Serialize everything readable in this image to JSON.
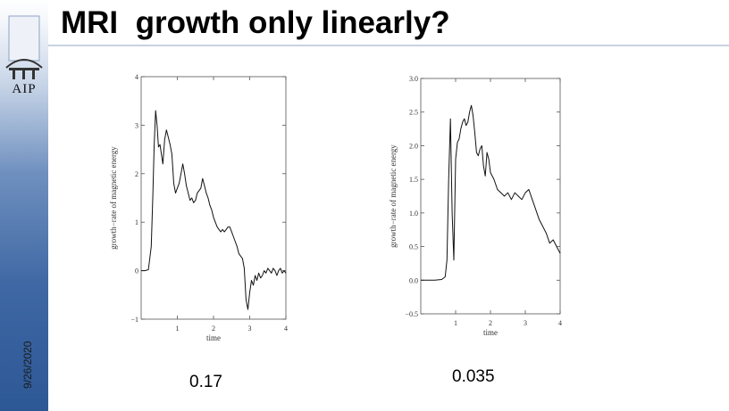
{
  "slide": {
    "title": "MRI  growth only linearly?",
    "date": "9/26/2020",
    "logo_text": "AIP"
  },
  "annotations": [
    "0.17",
    "0.035"
  ],
  "chart_data": [
    {
      "type": "line",
      "xlabel": "time",
      "ylabel": "growth−rate of magnetic energy",
      "xlim": [
        0,
        4.0
      ],
      "ylim": [
        -1,
        4
      ],
      "xticks": [
        1,
        2,
        3,
        4
      ],
      "yticks": [
        -1,
        0,
        1,
        2,
        3,
        4
      ],
      "xtick_labels": [
        "1",
        "2",
        "3",
        "4"
      ],
      "ytick_labels": [
        "−1",
        "0",
        "1",
        "2",
        "3",
        "4"
      ],
      "grid": false,
      "series": [
        {
          "x": [
            0.0,
            0.1,
            0.2,
            0.28,
            0.32,
            0.36,
            0.4,
            0.44,
            0.48,
            0.52,
            0.56,
            0.6,
            0.65,
            0.7,
            0.75,
            0.8,
            0.85,
            0.9,
            0.95,
            1.0,
            1.05,
            1.1,
            1.15,
            1.2,
            1.25,
            1.3,
            1.35,
            1.4,
            1.45,
            1.5,
            1.55,
            1.6,
            1.65,
            1.7,
            1.75,
            1.8,
            1.85,
            1.9,
            1.95,
            2.0,
            2.05,
            2.1,
            2.15,
            2.2,
            2.25,
            2.3,
            2.35,
            2.4,
            2.45,
            2.5,
            2.55,
            2.6,
            2.65,
            2.7,
            2.75,
            2.8,
            2.85,
            2.9,
            2.95,
            3.0,
            3.05,
            3.1,
            3.15,
            3.2,
            3.25,
            3.3,
            3.35,
            3.4,
            3.45,
            3.5,
            3.55,
            3.6,
            3.65,
            3.7,
            3.75,
            3.8,
            3.85,
            3.9,
            3.95,
            4.0
          ],
          "y": [
            0.0,
            0.0,
            0.02,
            0.5,
            1.5,
            2.6,
            3.3,
            3.0,
            2.55,
            2.6,
            2.4,
            2.2,
            2.7,
            2.9,
            2.75,
            2.6,
            2.4,
            1.8,
            1.6,
            1.7,
            1.8,
            2.0,
            2.2,
            2.0,
            1.75,
            1.6,
            1.45,
            1.5,
            1.4,
            1.45,
            1.6,
            1.65,
            1.7,
            1.9,
            1.75,
            1.6,
            1.5,
            1.35,
            1.25,
            1.1,
            1.0,
            0.9,
            0.85,
            0.8,
            0.85,
            0.8,
            0.85,
            0.9,
            0.9,
            0.8,
            0.7,
            0.6,
            0.5,
            0.35,
            0.3,
            0.25,
            0.05,
            -0.6,
            -0.8,
            -0.45,
            -0.2,
            -0.3,
            -0.1,
            -0.2,
            -0.05,
            -0.15,
            -0.1,
            0.0,
            -0.05,
            0.05,
            0.0,
            -0.05,
            0.05,
            0.0,
            -0.1,
            0.0,
            0.05,
            -0.05,
            0.0,
            -0.05
          ]
        }
      ]
    },
    {
      "type": "line",
      "xlabel": "time",
      "ylabel": "growth−rate of magnetic energy",
      "xlim": [
        0,
        4.0
      ],
      "ylim": [
        -0.5,
        3.0
      ],
      "xticks": [
        1,
        2,
        3,
        4
      ],
      "yticks": [
        -0.5,
        0.0,
        0.5,
        1.0,
        1.5,
        2.0,
        2.5,
        3.0
      ],
      "xtick_labels": [
        "1",
        "2",
        "3",
        "4"
      ],
      "ytick_labels": [
        "−0.5",
        "0.0",
        "0.5",
        "1.0",
        "1.5",
        "2.0",
        "2.5",
        "3.0"
      ],
      "grid": false,
      "series": [
        {
          "x": [
            0.0,
            0.2,
            0.4,
            0.6,
            0.7,
            0.75,
            0.8,
            0.85,
            0.9,
            0.95,
            1.0,
            1.05,
            1.1,
            1.15,
            1.2,
            1.25,
            1.3,
            1.35,
            1.4,
            1.45,
            1.5,
            1.55,
            1.6,
            1.65,
            1.7,
            1.75,
            1.8,
            1.85,
            1.9,
            1.95,
            2.0,
            2.1,
            2.2,
            2.3,
            2.4,
            2.5,
            2.6,
            2.7,
            2.8,
            2.9,
            3.0,
            3.1,
            3.2,
            3.3,
            3.4,
            3.5,
            3.6,
            3.7,
            3.8,
            3.9,
            4.0
          ],
          "y": [
            0.0,
            0.0,
            0.0,
            0.01,
            0.05,
            0.3,
            1.5,
            2.4,
            1.0,
            0.3,
            1.8,
            2.05,
            2.1,
            2.25,
            2.35,
            2.4,
            2.3,
            2.35,
            2.5,
            2.6,
            2.45,
            2.2,
            1.9,
            1.85,
            1.95,
            2.0,
            1.7,
            1.55,
            1.9,
            1.8,
            1.6,
            1.5,
            1.35,
            1.3,
            1.25,
            1.3,
            1.2,
            1.3,
            1.25,
            1.2,
            1.3,
            1.35,
            1.2,
            1.05,
            0.9,
            0.8,
            0.7,
            0.55,
            0.6,
            0.5,
            0.4
          ]
        }
      ]
    }
  ]
}
